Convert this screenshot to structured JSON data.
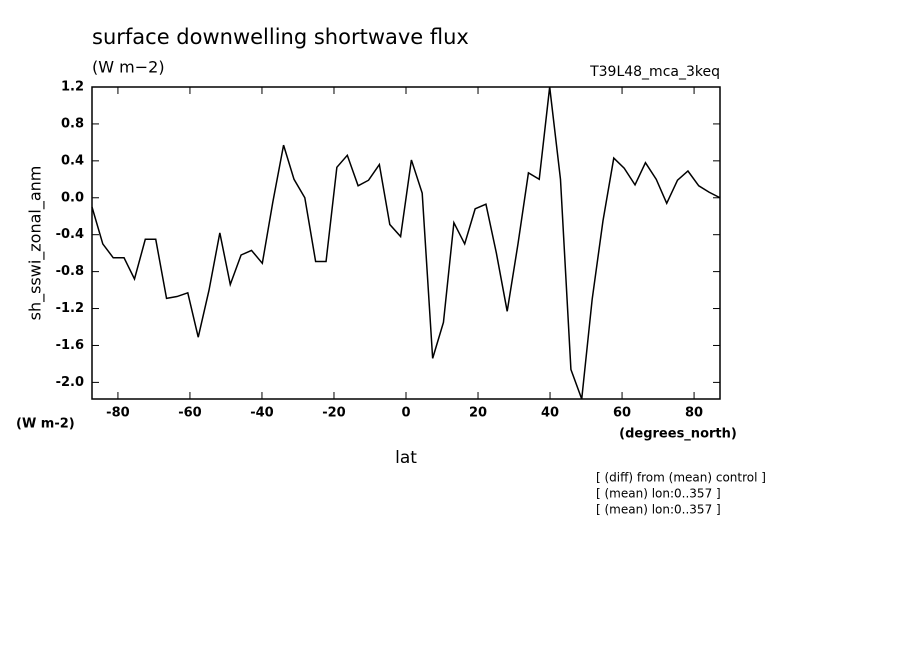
{
  "chart_data": {
    "type": "line",
    "title": "surface downwelling shortwave flux",
    "subtitle": "(W m−2)",
    "experiment": "T39L48_mca_3keq",
    "y_label": "sh_sswi_zonal_anm",
    "y_units": "(W m-2)",
    "x_label": "lat",
    "x_units": "(degrees_north)",
    "notes": [
      "[ (diff) from (mean) control ]",
      "[ (mean) lon:0..357 ]",
      "[ (mean) lon:0..357 ]"
    ],
    "x": [
      -87.2,
      -84.2,
      -81.3,
      -78.3,
      -75.4,
      -72.4,
      -69.5,
      -66.5,
      -63.6,
      -60.6,
      -57.7,
      -54.7,
      -51.7,
      -48.8,
      -45.8,
      -42.9,
      -39.9,
      -37.0,
      -34.0,
      -31.1,
      -28.1,
      -25.1,
      -22.2,
      -19.2,
      -16.3,
      -13.3,
      -10.4,
      -7.4,
      -4.5,
      -1.5,
      1.5,
      4.5,
      7.4,
      10.4,
      13.3,
      16.3,
      19.2,
      22.2,
      25.1,
      28.1,
      31.1,
      34.0,
      37.0,
      39.9,
      42.9,
      45.8,
      48.8,
      51.7,
      54.7,
      57.7,
      60.6,
      63.6,
      66.5,
      69.5,
      72.4,
      75.4,
      78.3,
      81.3,
      84.2,
      87.2
    ],
    "series": [
      {
        "color": "#000000",
        "values": [
          -0.1,
          -0.5,
          -0.65,
          -0.65,
          -0.88,
          -0.45,
          -0.45,
          -1.09,
          -1.07,
          -1.03,
          -1.51,
          -1.0,
          -0.38,
          -0.94,
          -0.62,
          -0.57,
          -0.71,
          -0.05,
          0.57,
          0.2,
          0.0,
          -0.69,
          -0.69,
          0.33,
          0.46,
          0.13,
          0.19,
          0.36,
          -0.29,
          -0.42,
          0.41,
          0.05,
          -1.74,
          -1.35,
          -0.27,
          -0.5,
          -0.12,
          -0.07,
          -0.6,
          -1.23,
          -0.5,
          0.27,
          0.2,
          1.2,
          0.2,
          -1.86,
          -2.18,
          -1.1,
          -0.25,
          0.43,
          0.32,
          0.14,
          0.38,
          0.2,
          -0.06,
          0.19,
          0.29,
          0.13,
          0.06,
          0.0
        ]
      }
    ],
    "xlim": [
      -87.2,
      87.2
    ],
    "ylim": [
      -2.18,
      1.2
    ],
    "xticks": [
      -80,
      -60,
      -40,
      -20,
      0,
      20,
      40,
      60,
      80
    ],
    "yticks": [
      1.2,
      0.8,
      0.4,
      {
        "value": 0,
        "label": "0.0"
      },
      -0.4,
      -0.8,
      -1.2,
      -1.6,
      {
        "value": -2,
        "label": "-2.0"
      }
    ]
  }
}
